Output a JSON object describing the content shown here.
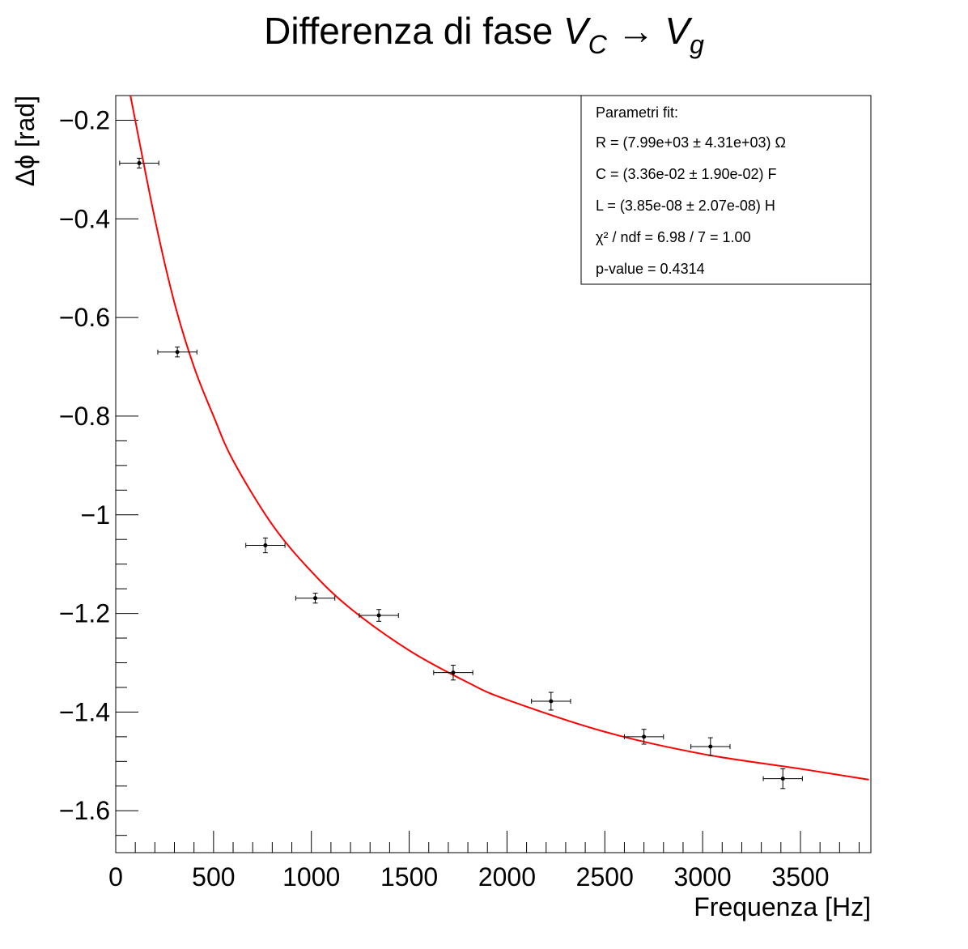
{
  "chart_data": {
    "type": "scatter",
    "title_text": "Differenza di fase ",
    "title_v1": "V",
    "title_v1_sub": "C",
    "title_arrow": " → ",
    "title_v2": "V",
    "title_v2_sub": "g",
    "xlabel": "Frequenza [Hz]",
    "ylabel": "Δϕ [rad]",
    "xlim": [
      0,
      3860
    ],
    "ylim": [
      -1.685,
      -0.15
    ],
    "x_ticks": [
      0,
      500,
      1000,
      1500,
      2000,
      2500,
      3000,
      3500
    ],
    "x_tick_labels": [
      "0",
      "500",
      "1000",
      "1500",
      "2000",
      "2500",
      "3000",
      "3500"
    ],
    "y_ticks": [
      -0.2,
      -0.4,
      -0.6,
      -0.8,
      -1.0,
      -1.2,
      -1.4,
      -1.6
    ],
    "y_tick_labels": [
      "−0.2",
      "−0.4",
      "−0.6",
      "−0.8",
      "−1",
      "−1.2",
      "−1.4",
      "−1.6"
    ],
    "grid": false,
    "points": {
      "x": [
        120,
        315,
        765,
        1020,
        1345,
        1725,
        2225,
        2700,
        3040,
        3410
      ],
      "y": [
        -0.287,
        -0.67,
        -1.062,
        -1.169,
        -1.204,
        -1.32,
        -1.378,
        -1.45,
        -1.47,
        -1.535
      ],
      "ex": [
        100,
        100,
        100,
        100,
        100,
        100,
        100,
        100,
        100,
        100
      ],
      "ey": [
        0.01,
        0.01,
        0.015,
        0.01,
        0.012,
        0.015,
        0.018,
        0.015,
        0.018,
        0.02
      ]
    },
    "fit_curve": {
      "name": "fit",
      "color": "#ff0000",
      "x": [
        75,
        200,
        300,
        400,
        500,
        600,
        800,
        1000,
        1200,
        1500,
        1800,
        2000,
        2500,
        3000,
        3500,
        3850
      ],
      "y": [
        -0.15,
        -0.4,
        -0.57,
        -0.7,
        -0.8,
        -0.89,
        -1.02,
        -1.115,
        -1.19,
        -1.275,
        -1.34,
        -1.375,
        -1.44,
        -1.485,
        -1.515,
        -1.537
      ]
    },
    "stats_box": {
      "header": "Parametri fit:",
      "lines": [
        "R = (7.99e+03 ± 4.31e+03) Ω",
        "C = (3.36e-02 ± 1.90e-02) F",
        "L = (3.85e-08 ± 2.07e-08) H",
        "χ² / ndf = 6.98 / 7 = 1.00",
        "p-value = 0.4314"
      ],
      "placement": "top-right"
    }
  }
}
